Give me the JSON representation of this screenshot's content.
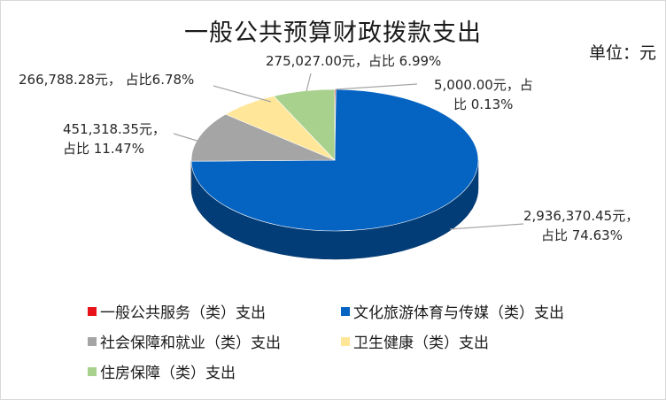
{
  "chart_data": {
    "type": "pie",
    "title": "一般公共预算财政拨款支出",
    "unit_label": "单位：元",
    "legend_placement": "bottom",
    "series": [
      {
        "name": "一般公共服务（类）支出",
        "value": 5000.0,
        "percent": 0.13,
        "color": "#e8131a",
        "label_line1": "5,000.00元，占",
        "label_line2": "比 0.13%"
      },
      {
        "name": "文化旅游体育与传媒（类）支出",
        "value": 2936370.45,
        "percent": 74.63,
        "color": "#0563c1",
        "label_line1": "2,936,370.45元，",
        "label_line2": "占比 74.63%"
      },
      {
        "name": "社会保障和就业（类）支出",
        "value": 451318.35,
        "percent": 11.47,
        "color": "#a5a5a5",
        "label_line1": "451,318.35元，",
        "label_line2": "占比 11.47%"
      },
      {
        "name": "卫生健康（类）支出",
        "value": 266788.28,
        "percent": 6.78,
        "color": "#ffe699",
        "label_line1": "266,788.28元，  占比6.78%",
        "label_line2": ""
      },
      {
        "name": "住房保障（类）支出",
        "value": 275027.0,
        "percent": 6.99,
        "color": "#a9d18e",
        "label_line1": "275,027.00元，占比 6.99%",
        "label_line2": ""
      }
    ]
  }
}
